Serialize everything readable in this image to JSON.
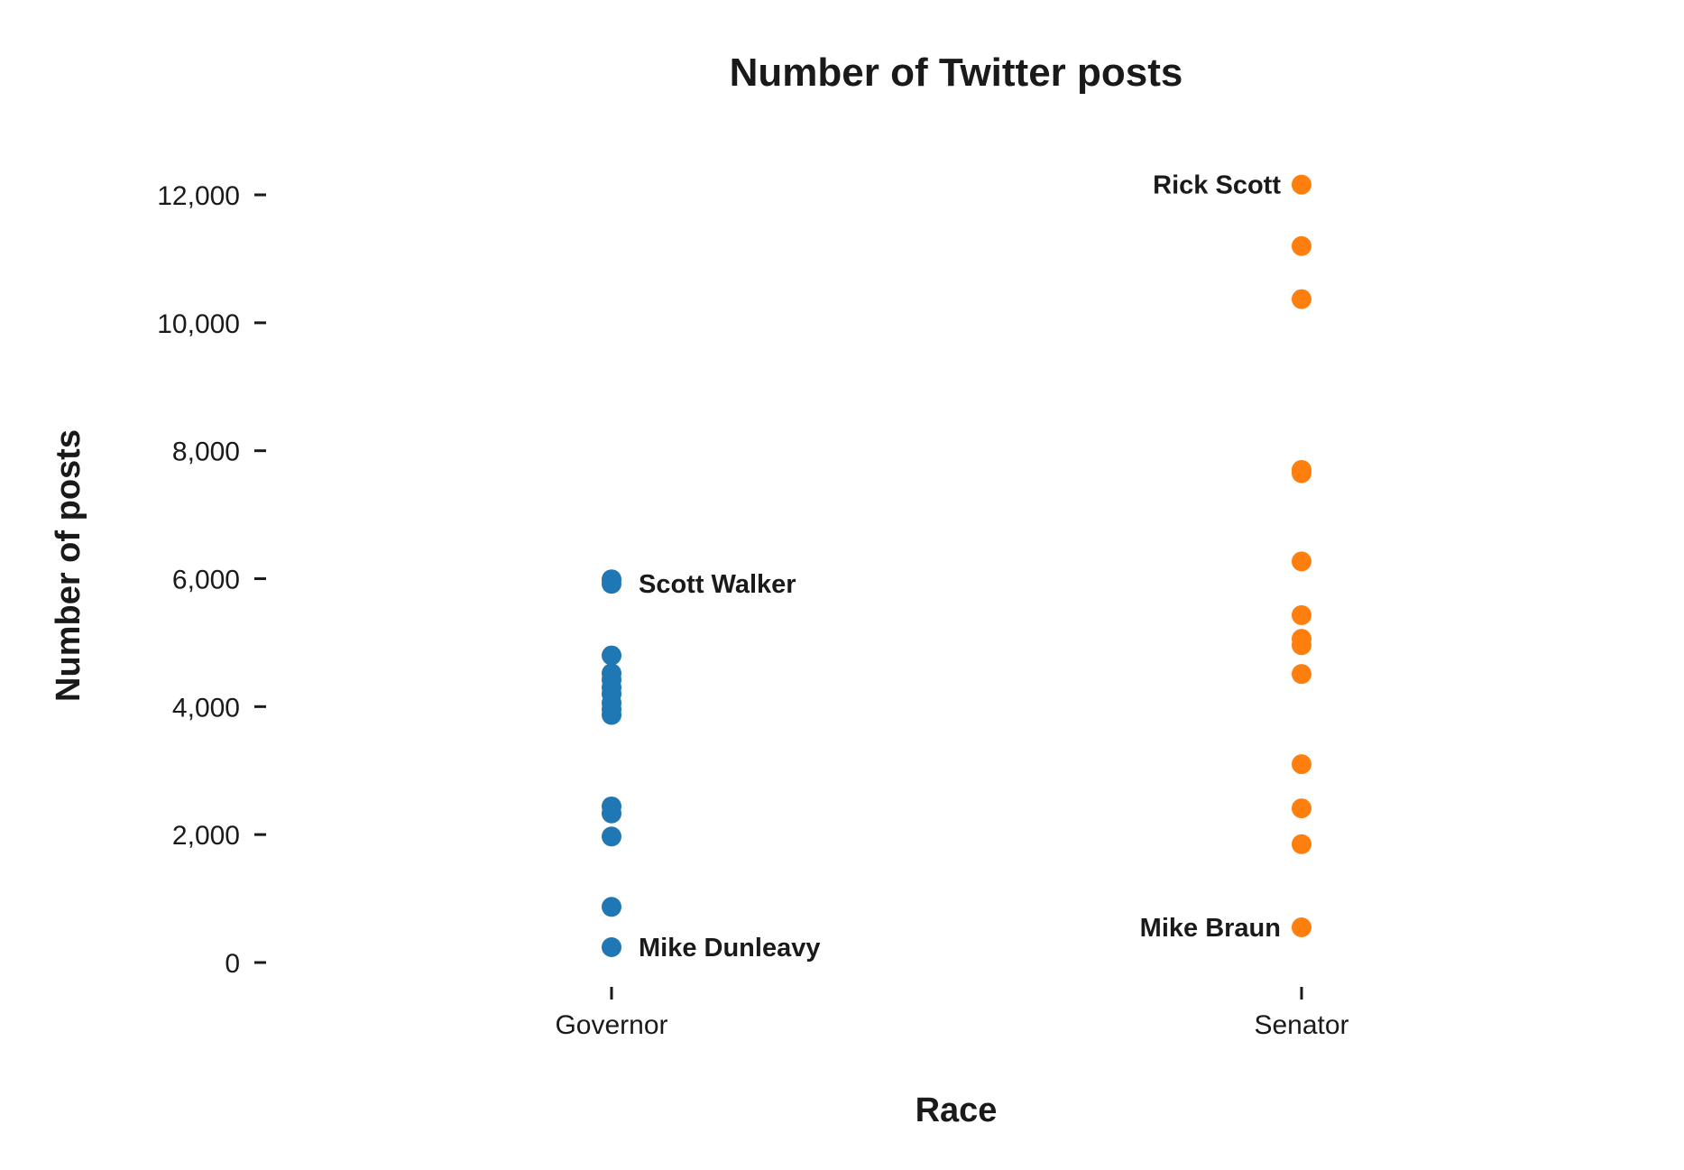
{
  "chart_data": {
    "type": "scatter",
    "title": "Number of Twitter posts",
    "xlabel": "Race",
    "ylabel": "Number of posts",
    "categories": [
      "Governor",
      "Senator"
    ],
    "ylim": [
      0,
      12000
    ],
    "yticks": [
      0,
      2000,
      4000,
      6000,
      8000,
      10000,
      12000
    ],
    "ytick_labels": [
      "0",
      "2,000",
      "4,000",
      "6,000",
      "8,000",
      "10,000",
      "12,000"
    ],
    "grid": false,
    "legend": "none",
    "series": [
      {
        "category": "Governor",
        "color": "#1f77b4",
        "values": [
          5990,
          5920,
          4800,
          4520,
          4420,
          4300,
          4200,
          4060,
          3960,
          3870,
          2440,
          2330,
          1970,
          870,
          240
        ]
      },
      {
        "category": "Senator",
        "color": "#ff7f0e",
        "values": [
          12160,
          11200,
          10370,
          7700,
          7650,
          6270,
          5430,
          5060,
          4960,
          4510,
          3100,
          2410,
          1850,
          550
        ]
      }
    ],
    "annotations": [
      {
        "text": "Scott Walker",
        "category": "Governor",
        "y": 5920,
        "side": "right"
      },
      {
        "text": "Mike Dunleavy",
        "category": "Governor",
        "y": 240,
        "side": "right"
      },
      {
        "text": "Rick Scott",
        "category": "Senator",
        "y": 12160,
        "side": "left"
      },
      {
        "text": "Mike Braun",
        "category": "Senator",
        "y": 550,
        "side": "left"
      }
    ]
  }
}
